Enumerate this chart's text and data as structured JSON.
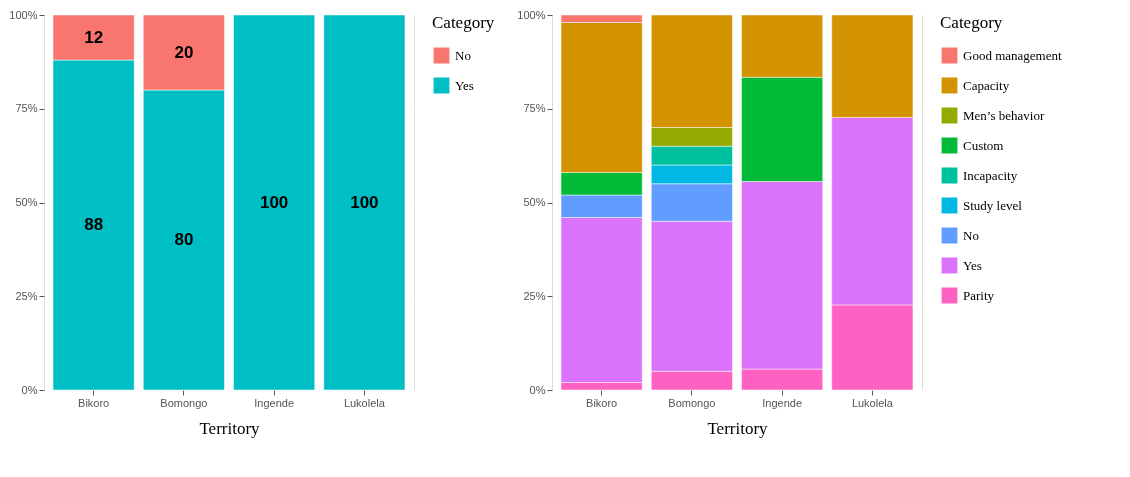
{
  "chart_data": [
    {
      "type": "bar",
      "stacked": true,
      "xlabel": "Territory",
      "legend_title": "Category",
      "legend": "right",
      "grid": true,
      "data_labels": true,
      "categories": [
        "Bikoro",
        "Bomongo",
        "Ingende",
        "Lukolela"
      ],
      "ylim": [
        0,
        100
      ],
      "yticks": [
        {
          "value": 0,
          "label": "0%"
        },
        {
          "value": 25,
          "label": "25%"
        },
        {
          "value": 50,
          "label": "50%"
        },
        {
          "value": 75,
          "label": "75%"
        },
        {
          "value": 100,
          "label": "100%"
        }
      ],
      "series": [
        {
          "name": "Yes",
          "color": "#00bfc4",
          "values": [
            88,
            80,
            100,
            100
          ]
        },
        {
          "name": "No",
          "color": "#f8766d",
          "values": [
            12,
            20,
            null,
            null
          ]
        }
      ]
    },
    {
      "type": "bar",
      "stacked": true,
      "xlabel": "Territory",
      "legend_title": "Category",
      "legend": "right",
      "grid": true,
      "categories": [
        "Bikoro",
        "Bomongo",
        "Ingende",
        "Lukolela"
      ],
      "ylim": [
        0,
        100
      ],
      "yticks": [
        {
          "value": 0,
          "label": "0%"
        },
        {
          "value": 25,
          "label": "25%"
        },
        {
          "value": 50,
          "label": "50%"
        },
        {
          "value": 75,
          "label": "75%"
        },
        {
          "value": 100,
          "label": "100%"
        }
      ],
      "series": [
        {
          "name": "Parity",
          "color": "#ff61c3",
          "values": [
            2,
            5,
            5.6,
            22.7
          ]
        },
        {
          "name": "Yes",
          "color": "#db72fb",
          "values": [
            44,
            40,
            50,
            50
          ]
        },
        {
          "name": "No",
          "color": "#619cff",
          "values": [
            6,
            10,
            null,
            null
          ]
        },
        {
          "name": "Study level",
          "color": "#00b9e3",
          "values": [
            null,
            5,
            null,
            null
          ]
        },
        {
          "name": "Incapacity",
          "color": "#00c19f",
          "values": [
            null,
            5,
            null,
            null
          ]
        },
        {
          "name": "Custom",
          "color": "#00ba38",
          "values": [
            6,
            null,
            27.8,
            null
          ]
        },
        {
          "name": "Men’s behavior",
          "color": "#93aa00",
          "values": [
            null,
            5,
            null,
            null
          ]
        },
        {
          "name": "Capacity",
          "color": "#d39200",
          "values": [
            40,
            30,
            16.6,
            27.3
          ]
        },
        {
          "name": "Good management",
          "color": "#f8766d",
          "values": [
            2,
            null,
            null,
            null
          ]
        }
      ]
    }
  ]
}
